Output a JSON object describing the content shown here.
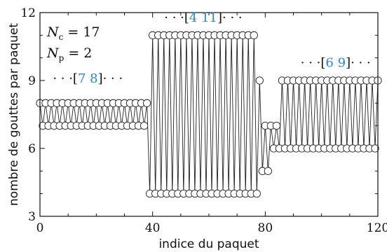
{
  "chart_data": {
    "type": "line",
    "xlabel": "indice du paquet",
    "ylabel": "nombre de gouttes par paquet",
    "xlim": [
      0,
      120
    ],
    "ylim": [
      3,
      12
    ],
    "x_ticks": [
      0,
      40,
      80,
      120
    ],
    "y_ticks": [
      3,
      6,
      9,
      12
    ],
    "grid": false,
    "marker": "open-circle",
    "params": {
      "nc_symbol": "N",
      "nc_sub": "c",
      "nc_value": "= 17",
      "np_symbol": "N",
      "np_sub": "p",
      "np_value": "= 2"
    },
    "annotations": [
      {
        "prefix": "· · ·[",
        "a": "7",
        "b": "8",
        "suffix": "]· · ·",
        "x": 17,
        "y": 8.9
      },
      {
        "prefix": "· · ·[",
        "a": "4",
        "b": "11",
        "suffix": "]· · ·",
        "x": 58,
        "y": 11.6
      },
      {
        "prefix": "· · ·[",
        "a": "6",
        "b": "9",
        "suffix": "]· · ·",
        "x": 105,
        "y": 9.6
      }
    ],
    "series": [
      {
        "x": [
          0,
          1,
          2,
          3,
          4,
          5,
          6,
          7,
          8,
          9,
          10,
          11,
          12,
          13,
          14,
          15,
          16,
          17,
          18,
          19,
          20,
          21,
          22,
          23,
          24,
          25,
          26,
          27,
          28,
          29,
          30,
          31,
          32,
          33,
          34,
          35,
          36,
          37,
          38,
          39,
          40,
          41,
          42,
          43,
          44,
          45,
          46,
          47,
          48,
          49,
          50,
          51,
          52,
          53,
          54,
          55,
          56,
          57,
          58,
          59,
          60,
          61,
          62,
          63,
          64,
          65,
          66,
          67,
          68,
          69,
          70,
          71,
          72,
          73,
          74,
          75,
          76,
          77,
          78,
          79,
          80,
          81,
          82,
          83,
          84,
          85,
          86,
          87,
          88,
          89,
          90,
          91,
          92,
          93,
          94,
          95,
          96,
          97,
          98,
          99,
          100,
          101,
          102,
          103,
          104,
          105,
          106,
          107,
          108,
          109,
          110,
          111,
          112,
          113,
          114,
          115,
          116,
          117,
          118,
          119,
          120
        ],
        "values": [
          8,
          7,
          8,
          7,
          8,
          7,
          8,
          7,
          8,
          7,
          8,
          7,
          8,
          7,
          8,
          7,
          8,
          7,
          8,
          7,
          8,
          7,
          8,
          7,
          8,
          7,
          8,
          7,
          8,
          7,
          8,
          7,
          8,
          7,
          8,
          7,
          8,
          7,
          8,
          4,
          11,
          4,
          11,
          4,
          11,
          4,
          11,
          4,
          11,
          4,
          11,
          4,
          11,
          4,
          11,
          4,
          11,
          4,
          11,
          4,
          11,
          4,
          11,
          4,
          11,
          4,
          11,
          4,
          11,
          4,
          11,
          4,
          11,
          4,
          11,
          4,
          11,
          4,
          9,
          5,
          7,
          5,
          7,
          6,
          7,
          6,
          9,
          6,
          9,
          6,
          9,
          6,
          9,
          6,
          9,
          6,
          9,
          6,
          9,
          6,
          9,
          6,
          9,
          6,
          9,
          6,
          9,
          6,
          9,
          6,
          9,
          6,
          9,
          6,
          9,
          6,
          9,
          6,
          9,
          6,
          9
        ]
      }
    ]
  }
}
